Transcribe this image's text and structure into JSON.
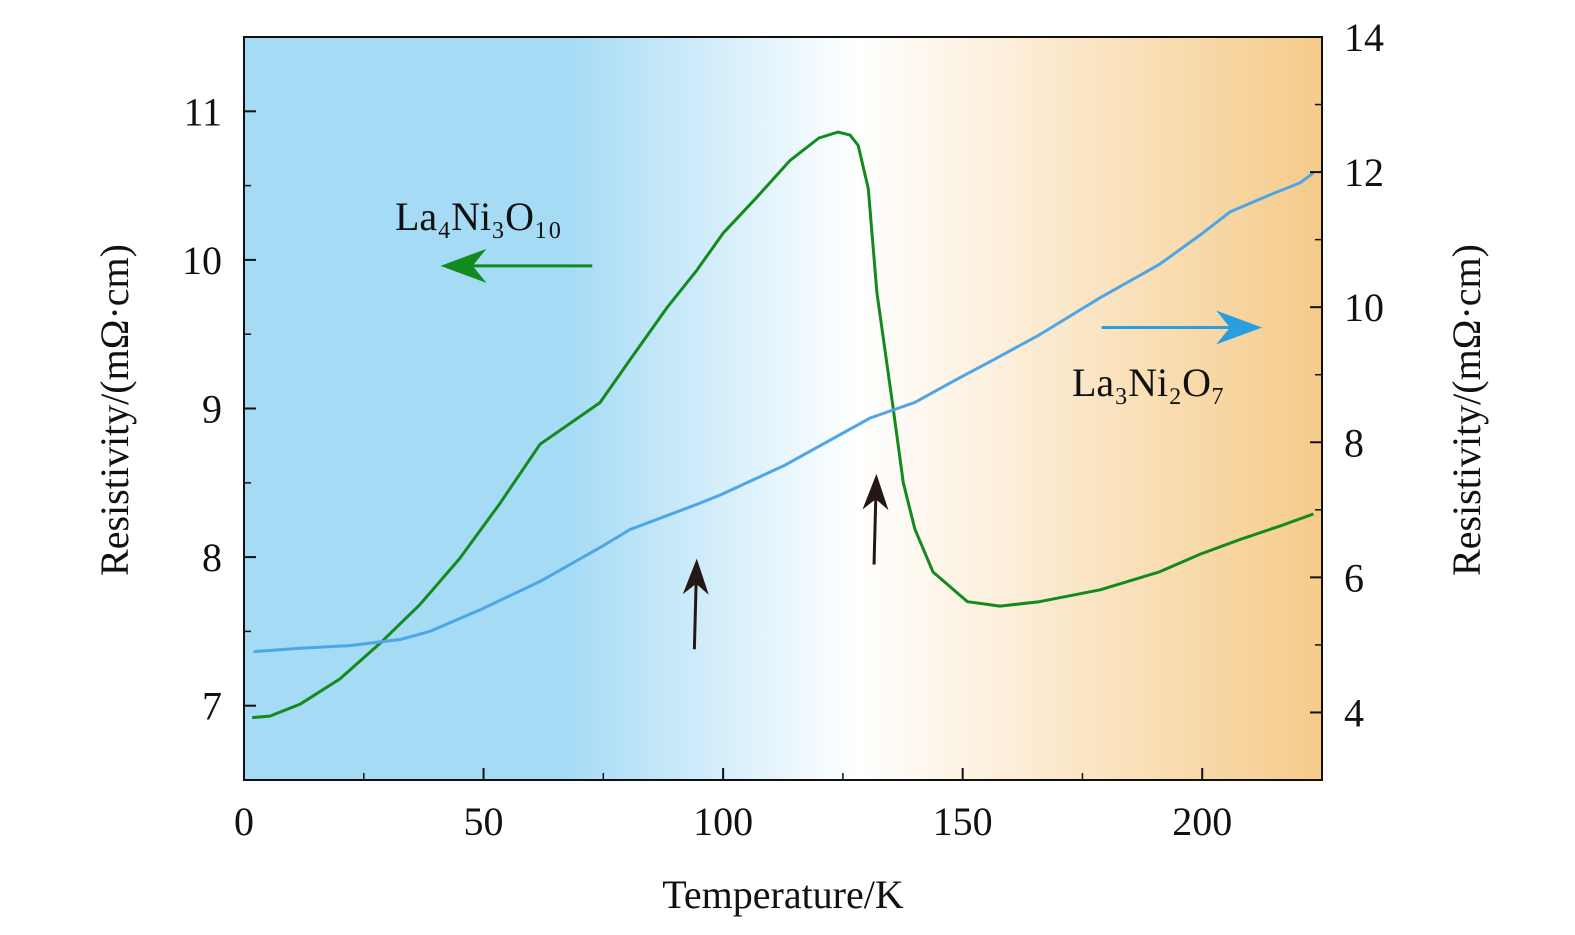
{
  "chart_data": {
    "type": "line",
    "title": "",
    "xlabel": "Temperature/K",
    "ylabel_left": "Resistivity/(mΩ·cm)",
    "ylabel_right": "Resistivity/(mΩ·cm)",
    "xlim": [
      0,
      225
    ],
    "ylim_left": [
      6.5,
      11.5
    ],
    "ylim_right": [
      3,
      14
    ],
    "x_ticks": [
      "0",
      "50",
      "100",
      "150",
      "200"
    ],
    "x_tick_values": [
      0,
      50,
      100,
      150,
      200
    ],
    "y_left_ticks": [
      "7",
      "8",
      "9",
      "10",
      "11"
    ],
    "y_left_tick_values": [
      7,
      8,
      9,
      10,
      11
    ],
    "y_right_ticks": [
      "4",
      "6",
      "8",
      "10",
      "12",
      "14"
    ],
    "y_right_tick_values": [
      4,
      6,
      8,
      10,
      12,
      14
    ],
    "grid": false,
    "background": {
      "left_color": "#a6dbf5",
      "mid_color": "#ffffff",
      "right_color": "#f6cb8a",
      "white_at_T": 128
    },
    "series": [
      {
        "name": "La₄Ni₃O₁₀",
        "axis": "left",
        "color": "#138a1e",
        "x": [
          1.7,
          5.4,
          11.7,
          20,
          28.4,
          36.7,
          45,
          53.4,
          61.8,
          74.3,
          80.6,
          88.3,
          94.5,
          100,
          107,
          114,
          120,
          124,
          126.5,
          128.2,
          130.3,
          132.1,
          135.5,
          137.6,
          140,
          143.8,
          151,
          157.8,
          166,
          178.7,
          191,
          199.6,
          208,
          216.3,
          223.2
        ],
        "y": [
          6.92,
          6.93,
          7.01,
          7.18,
          7.42,
          7.68,
          7.99,
          8.36,
          8.76,
          9.04,
          9.33,
          9.68,
          9.93,
          10.18,
          10.42,
          10.67,
          10.82,
          10.86,
          10.84,
          10.77,
          10.48,
          9.78,
          9.0,
          8.5,
          8.19,
          7.9,
          7.7,
          7.67,
          7.7,
          7.78,
          7.9,
          8.02,
          8.12,
          8.21,
          8.29
        ]
      },
      {
        "name": "La₃Ni₂O₇",
        "axis": "right",
        "color": "#4ea6e6",
        "x": [
          2,
          11.7,
          22,
          32.6,
          38.8,
          49.3,
          61.8,
          74.3,
          80.6,
          94.5,
          99.4,
          112.6,
          130.7,
          140,
          149.5,
          156.4,
          166,
          178.7,
          191,
          199.6,
          205.8,
          214,
          220.4,
          223.2
        ],
        "y": [
          4.9,
          4.95,
          4.99,
          5.08,
          5.2,
          5.52,
          5.94,
          6.44,
          6.71,
          7.08,
          7.22,
          7.65,
          8.36,
          8.59,
          8.96,
          9.22,
          9.59,
          10.14,
          10.63,
          11.07,
          11.41,
          11.66,
          11.84,
          11.99
        ]
      }
    ],
    "annotations": [
      {
        "type": "arrow",
        "color": "#231815",
        "axis": "left",
        "from": [
          94,
          7.38
        ],
        "to": [
          94.5,
          7.99
        ]
      },
      {
        "type": "arrow",
        "color": "#231815",
        "axis": "left",
        "from": [
          131.5,
          7.95
        ],
        "to": [
          132,
          8.56
        ]
      },
      {
        "type": "arrow",
        "color": "#138a1e",
        "axis": "left",
        "from": [
          72.7,
          9.96
        ],
        "to": [
          41,
          9.96
        ],
        "label": "La₄Ni₃O₁₀"
      },
      {
        "type": "arrow",
        "color": "#2a9fe0",
        "axis": "right",
        "from": [
          179,
          9.7
        ],
        "to": [
          212.5,
          9.7
        ],
        "label": "La₃Ni₂O₇"
      }
    ]
  }
}
